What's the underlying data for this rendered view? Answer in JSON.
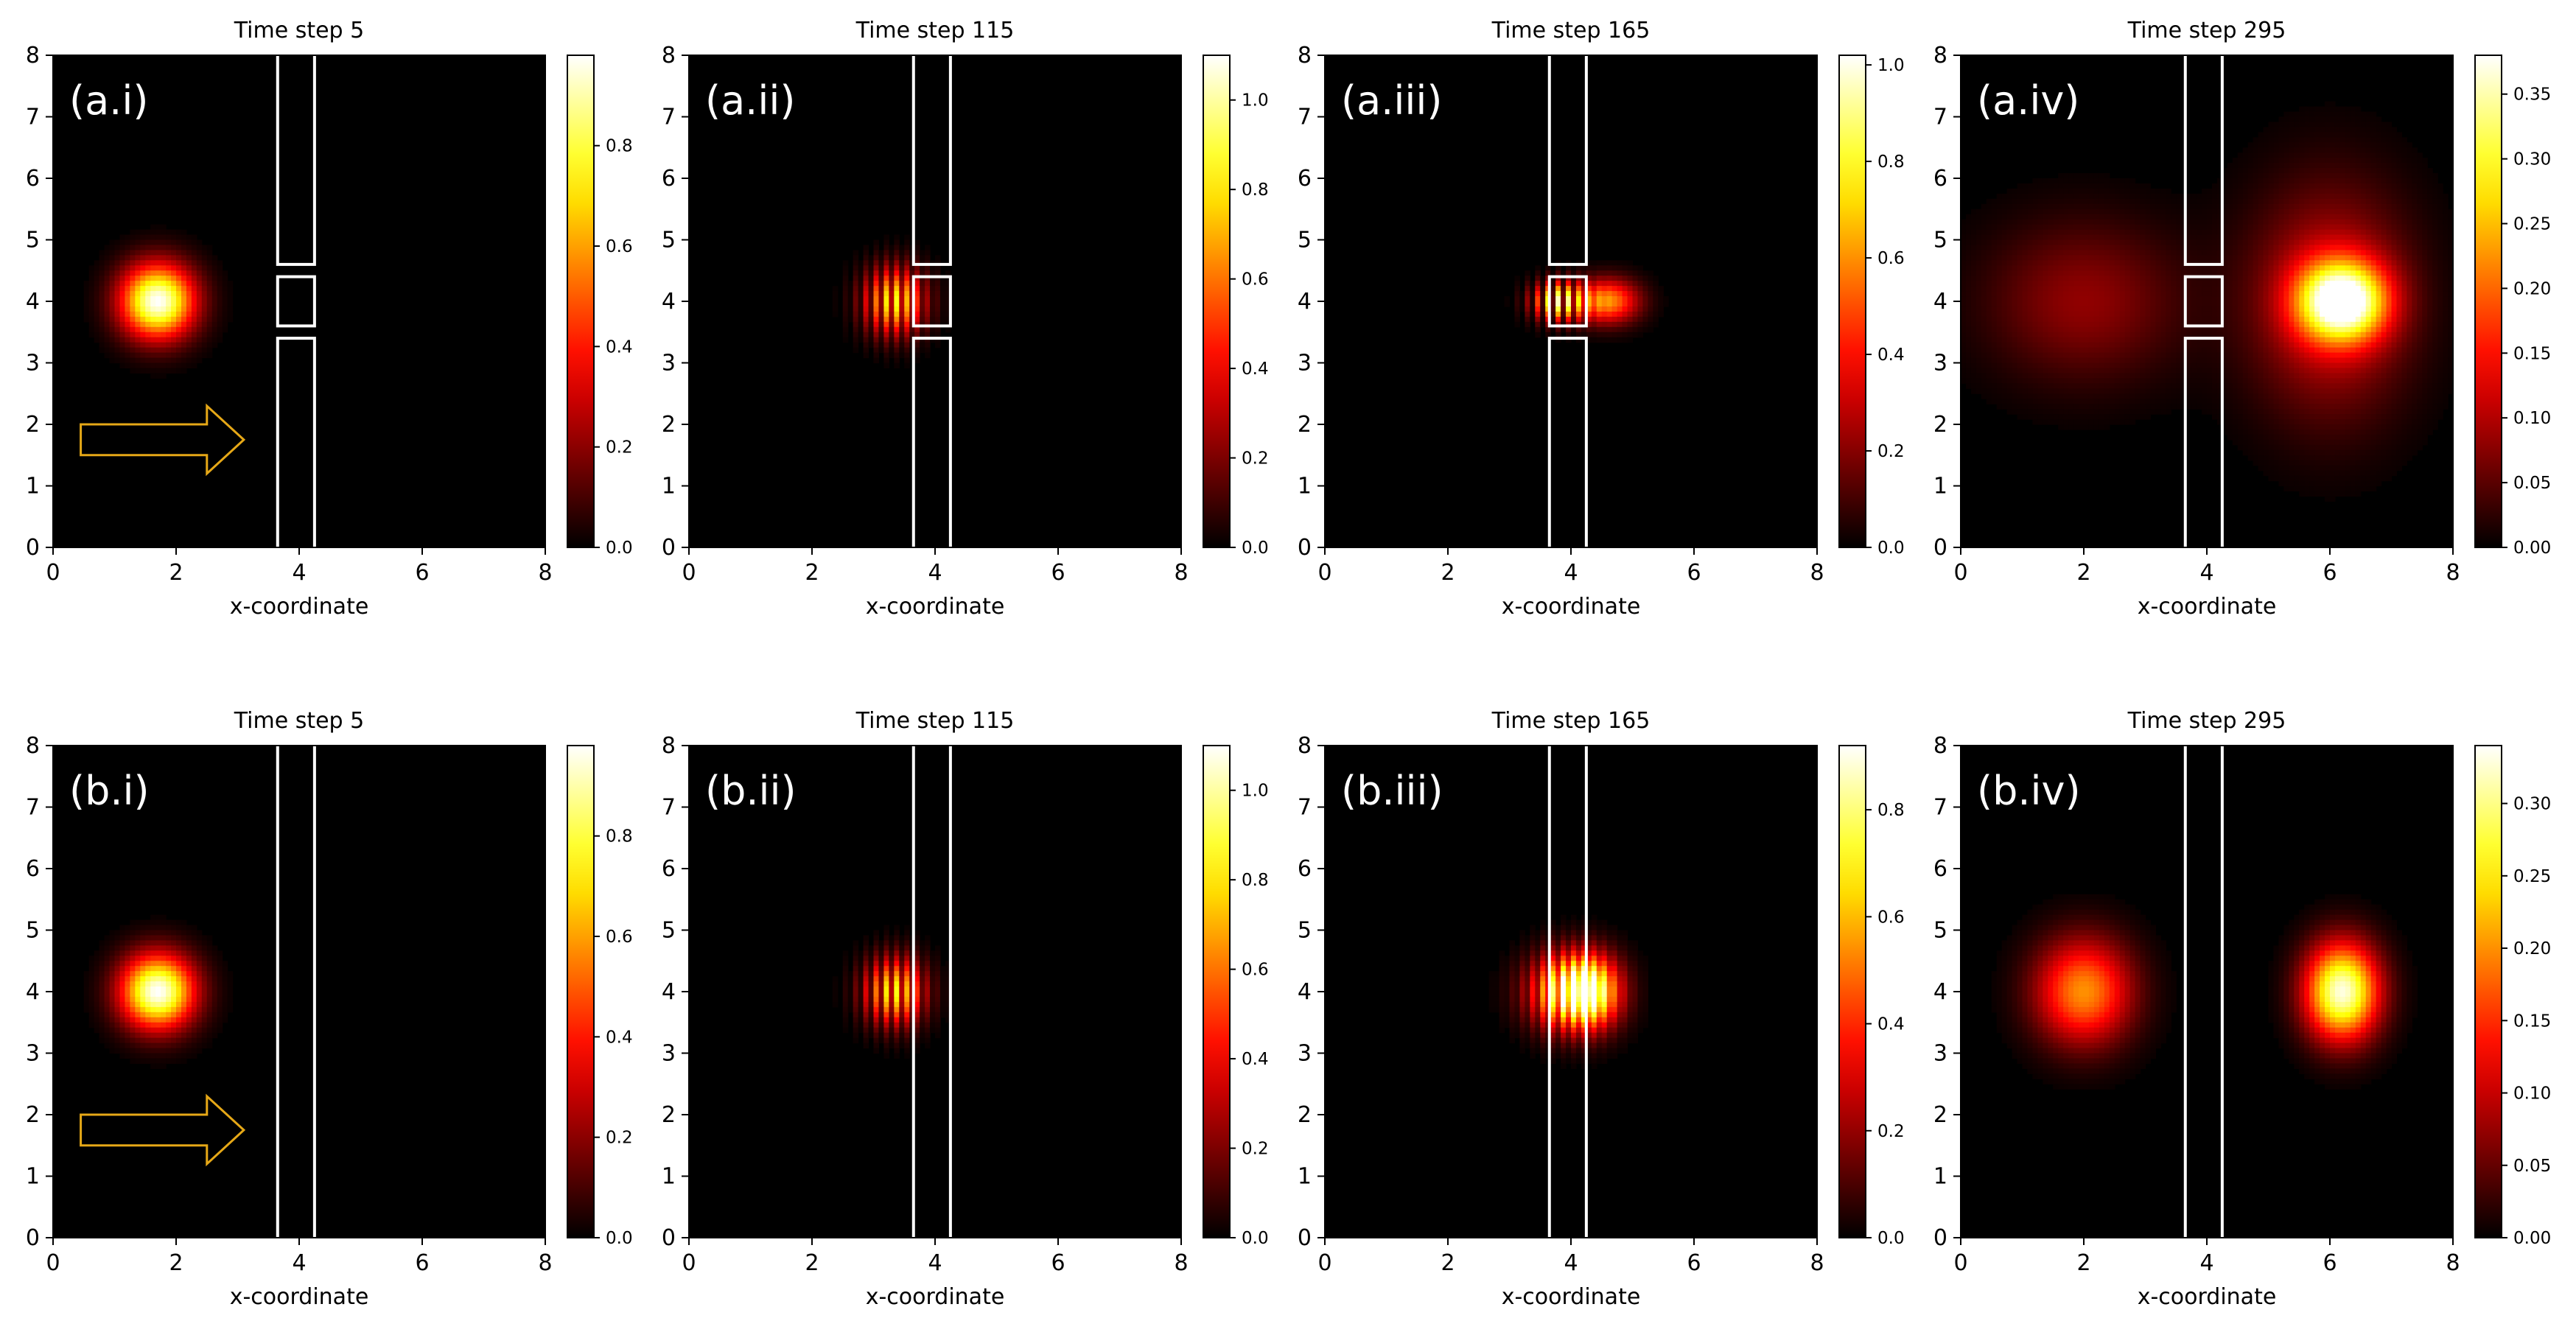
{
  "chart_data": {
    "type": "heatmap",
    "x_label": "x-coordinate",
    "x_ticks": [
      "0",
      "2",
      "4",
      "6",
      "8"
    ],
    "y_ticks": [
      "0",
      "1",
      "2",
      "3",
      "4",
      "5",
      "6",
      "7",
      "8"
    ],
    "xlim": [
      0,
      8
    ],
    "ylim": [
      0,
      8
    ],
    "colormap": "hot",
    "colors": {
      "low": "#000000",
      "mid": "#ff0000",
      "high_mid": "#ffff00",
      "high": "#ffffff",
      "wall": "#ffffff",
      "arrow": "#e6a817"
    },
    "barrier": {
      "x_range": [
        3.65,
        4.25
      ],
      "slit_gaps_y": [
        [
          3.4,
          3.6
        ],
        [
          4.4,
          4.6
        ]
      ],
      "block_y_range": [
        3.6,
        4.4
      ]
    },
    "panels": [
      {
        "label": "(a.i)",
        "title": "Time step 5",
        "barrier": "double-slit",
        "arrow": true,
        "cbar_ticks": [
          "0.0",
          "0.2",
          "0.4",
          "0.6",
          "0.8"
        ],
        "cbar_max": 0.98,
        "blobs": [
          {
            "x": 1.7,
            "y": 4.0,
            "peak": 0.98,
            "sigma_x": 0.42,
            "sigma_y": 0.42
          }
        ]
      },
      {
        "label": "(a.ii)",
        "title": "Time step 115",
        "barrier": "double-slit",
        "arrow": false,
        "cbar_ticks": [
          "0.0",
          "0.2",
          "0.4",
          "0.6",
          "0.8",
          "1.0"
        ],
        "cbar_max": 1.1,
        "blobs": [
          {
            "x": 3.35,
            "y": 4.0,
            "peak": 1.05,
            "sigma_x": 0.35,
            "sigma_y": 0.38,
            "fringes": true
          }
        ]
      },
      {
        "label": "(a.iii)",
        "title": "Time step 165",
        "barrier": "double-slit",
        "arrow": false,
        "cbar_ticks": [
          "0.0",
          "0.2",
          "0.4",
          "0.6",
          "0.8",
          "1.0"
        ],
        "cbar_max": 1.02,
        "blobs": [
          {
            "x": 3.8,
            "y": 4.0,
            "peak": 0.95,
            "sigma_x": 0.3,
            "sigma_y": 0.22,
            "fringes": true
          },
          {
            "x": 4.6,
            "y": 4.0,
            "peak": 0.6,
            "sigma_x": 0.35,
            "sigma_y": 0.25
          }
        ]
      },
      {
        "label": "(a.iv)",
        "title": "Time step 295",
        "barrier": "double-slit",
        "arrow": false,
        "cbar_ticks": [
          "0.00",
          "0.05",
          "0.10",
          "0.15",
          "0.20",
          "0.25",
          "0.30",
          "0.35"
        ],
        "cbar_max": 0.38,
        "blobs": [
          {
            "x": 2.0,
            "y": 4.0,
            "peak": 0.08,
            "sigma_x": 1.1,
            "sigma_y": 0.9
          },
          {
            "x": 6.2,
            "y": 4.0,
            "peak": 0.36,
            "sigma_x": 0.5,
            "sigma_y": 0.45
          },
          {
            "x": 6.0,
            "y": 4.0,
            "peak": 0.12,
            "sigma_x": 0.9,
            "sigma_y": 1.3
          }
        ]
      },
      {
        "label": "(b.i)",
        "title": "Time step 5",
        "barrier": "single-wall",
        "arrow": true,
        "cbar_ticks": [
          "0.0",
          "0.2",
          "0.4",
          "0.6",
          "0.8"
        ],
        "cbar_max": 0.98,
        "blobs": [
          {
            "x": 1.7,
            "y": 4.0,
            "peak": 0.98,
            "sigma_x": 0.42,
            "sigma_y": 0.42
          }
        ]
      },
      {
        "label": "(b.ii)",
        "title": "Time step 115",
        "barrier": "single-wall",
        "arrow": false,
        "cbar_ticks": [
          "0.0",
          "0.2",
          "0.4",
          "0.6",
          "0.8",
          "1.0"
        ],
        "cbar_max": 1.1,
        "blobs": [
          {
            "x": 3.35,
            "y": 4.0,
            "peak": 1.05,
            "sigma_x": 0.35,
            "sigma_y": 0.38,
            "fringes": true
          }
        ]
      },
      {
        "label": "(b.iii)",
        "title": "Time step 165",
        "barrier": "single-wall",
        "arrow": false,
        "cbar_ticks": [
          "0.0",
          "0.2",
          "0.4",
          "0.6",
          "0.8"
        ],
        "cbar_max": 0.92,
        "blobs": [
          {
            "x": 3.9,
            "y": 4.0,
            "peak": 0.88,
            "sigma_x": 0.45,
            "sigma_y": 0.42,
            "fringes": true
          },
          {
            "x": 4.3,
            "y": 4.0,
            "peak": 0.7,
            "sigma_x": 0.35,
            "sigma_y": 0.4
          }
        ]
      },
      {
        "label": "(b.iv)",
        "title": "Time step 295",
        "barrier": "single-wall",
        "arrow": false,
        "cbar_ticks": [
          "0.00",
          "0.05",
          "0.10",
          "0.15",
          "0.20",
          "0.25",
          "0.30"
        ],
        "cbar_max": 0.34,
        "blobs": [
          {
            "x": 2.0,
            "y": 4.0,
            "peak": 0.2,
            "sigma_x": 0.55,
            "sigma_y": 0.6
          },
          {
            "x": 6.2,
            "y": 4.0,
            "peak": 0.33,
            "sigma_x": 0.42,
            "sigma_y": 0.55
          }
        ]
      }
    ]
  }
}
